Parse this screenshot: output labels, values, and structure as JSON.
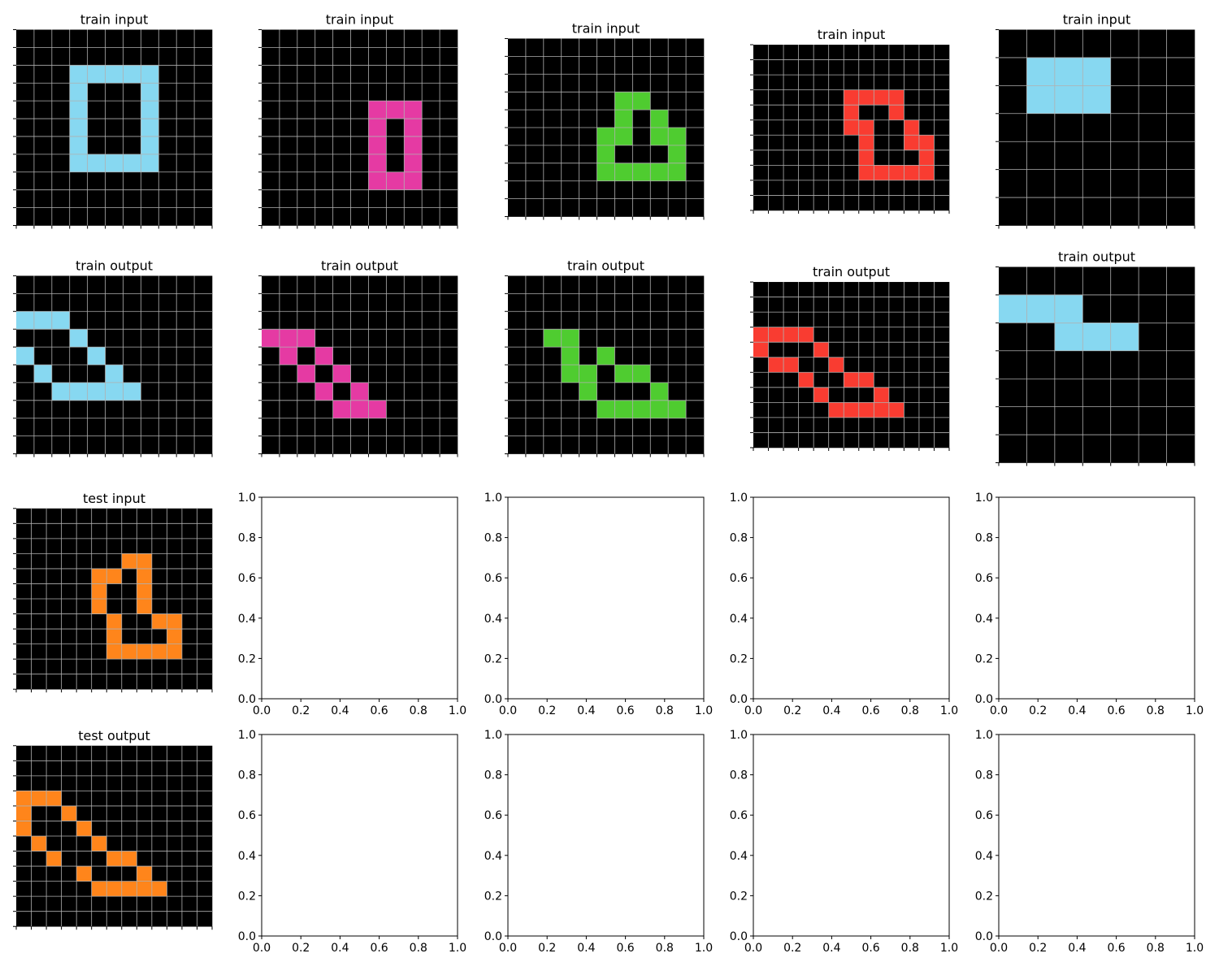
{
  "figure": {
    "background": "#ffffff"
  },
  "palette": {
    "0": "#000000",
    "1": "#1e93ff",
    "2": "#f93c31",
    "3": "#4fcc30",
    "4": "#ffdc00",
    "5": "#999999",
    "6": "#e53aa3",
    "7": "#ff851b",
    "8": "#87d8f1",
    "9": "#921231"
  },
  "grid_line_color": "#b0b0b0",
  "empty_axis": {
    "ticks": [
      0,
      0.2,
      0.4,
      0.6,
      0.8,
      1.0
    ],
    "tick_labels": [
      "0.0",
      "0.2",
      "0.4",
      "0.6",
      "0.8",
      "1.0"
    ]
  },
  "chart_data": [
    {
      "type": "heatmap",
      "title": "train input",
      "grid": [
        "00000000000",
        "00000000000",
        "00088888000",
        "00080008000",
        "00080008000",
        "00080008000",
        "00080008000",
        "00088888000",
        "00000000000",
        "00000000000",
        "00000000000"
      ]
    },
    {
      "type": "heatmap",
      "title": "train input",
      "grid": [
        "00000000000",
        "00000000000",
        "00000000000",
        "00000000000",
        "00000066600",
        "00000060600",
        "00000060600",
        "00000060600",
        "00000066600",
        "00000000000",
        "00000000000"
      ]
    },
    {
      "type": "heatmap",
      "title": "train input",
      "grid": [
        "00000000000",
        "00000000000",
        "00000000000",
        "00000033000",
        "00000030300",
        "00000330330",
        "00000300030",
        "00000333330",
        "00000000000",
        "00000000000"
      ]
    },
    {
      "type": "heatmap",
      "title": "train input",
      "grid": [
        "0000000000000",
        "0000000000000",
        "0000000000000",
        "0000002222000",
        "0000002002000",
        "0000002200200",
        "0000000200220",
        "0000000200020",
        "0000000222220",
        "0000000000000",
        "0000000000000"
      ]
    },
    {
      "type": "heatmap",
      "title": "train input",
      "grid": [
        "0000000",
        "0888000",
        "0888000",
        "0000000",
        "0000000",
        "0000000",
        "0000000"
      ]
    },
    {
      "type": "heatmap",
      "title": "train output",
      "grid": [
        "00000000000",
        "00000000000",
        "88800000000",
        "00080000000",
        "80008000000",
        "08000800000",
        "00888880000",
        "00000000000",
        "00000000000",
        "00000000000"
      ]
    },
    {
      "type": "heatmap",
      "title": "train output",
      "grid": [
        "00000000000",
        "00000000000",
        "00000000000",
        "66600000000",
        "06060000000",
        "00606000000",
        "00060600000",
        "00006660000",
        "00000000000",
        "00000000000"
      ]
    },
    {
      "type": "heatmap",
      "title": "train output",
      "grid": [
        "00000000000",
        "00000000000",
        "00000000000",
        "00330000000",
        "00030300000",
        "00033033000",
        "00003000300",
        "00000333330",
        "00000000000",
        "00000000000"
      ]
    },
    {
      "type": "heatmap",
      "title": "train output",
      "grid": [
        "0000000000000",
        "0000000000000",
        "0000000000000",
        "2222000000000",
        "2000200000000",
        "0220020000000",
        "0002002200000",
        "0000200020000",
        "0000022222000",
        "0000000000000",
        "0000000000000"
      ]
    },
    {
      "type": "heatmap",
      "title": "train output",
      "grid": [
        "0000000",
        "8880000",
        "0088800",
        "0000000",
        "0000000",
        "0000000",
        "0000000"
      ]
    },
    {
      "type": "heatmap",
      "title": "test input",
      "grid": [
        "0000000000000",
        "0000000000000",
        "0000000000000",
        "0000000770000",
        "0000077070000",
        "0000070070000",
        "0000070070000",
        "0000007007700",
        "0000007000700",
        "0000007777700",
        "0000000000000",
        "0000000000000"
      ]
    },
    {
      "type": "heatmap",
      "title": "test output",
      "grid": [
        "0000000000000",
        "0000000000000",
        "0000000000000",
        "7770000000000",
        "7007000000000",
        "7000700000000",
        "0700070000000",
        "0070007700000",
        "0000700070000",
        "0000077777000",
        "0000000000000",
        "0000000000000"
      ]
    }
  ]
}
